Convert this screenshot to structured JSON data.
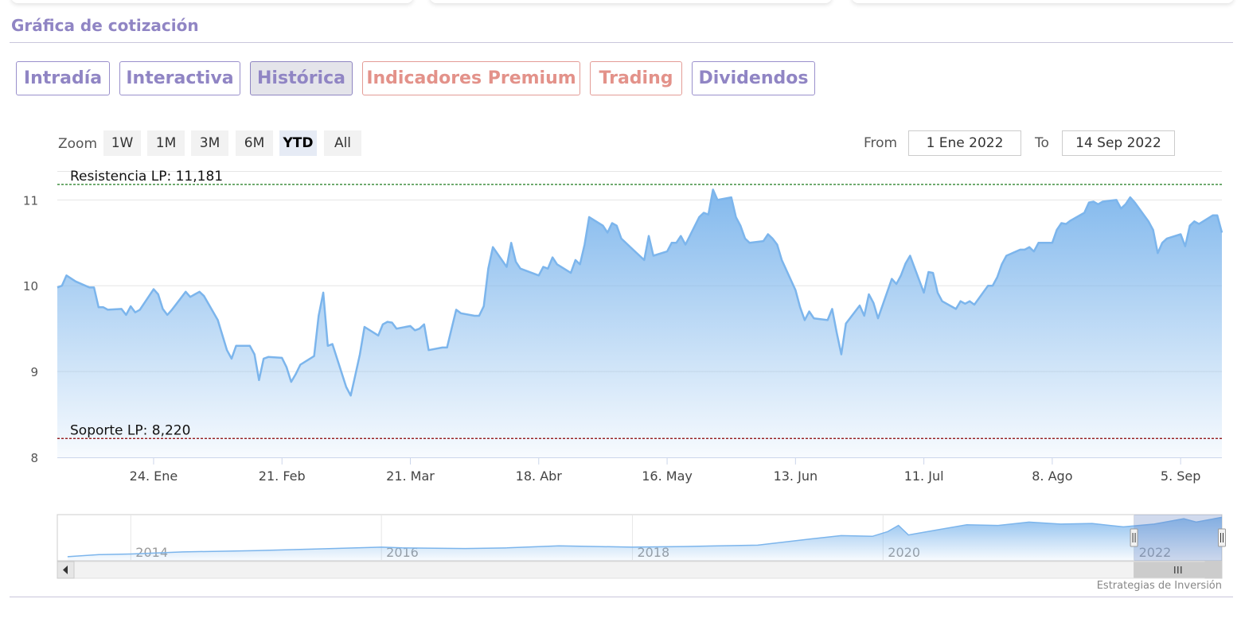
{
  "page": {
    "section_title": "Gráfica de cotización",
    "credit": "Estrategias de Inversión"
  },
  "tabs": [
    {
      "label": "Intradía",
      "state": "normal"
    },
    {
      "label": "Interactiva",
      "state": "normal"
    },
    {
      "label": "Histórica",
      "state": "active"
    },
    {
      "label": "Indicadores Premium",
      "state": "premium"
    },
    {
      "label": "Trading",
      "state": "premium"
    },
    {
      "label": "Dividendos",
      "state": "normal"
    }
  ],
  "range_selector": {
    "zoom_label": "Zoom",
    "buttons": [
      "1W",
      "1M",
      "3M",
      "6M",
      "YTD",
      "All"
    ],
    "selected": "YTD",
    "from_label": "From",
    "from_value": "1 Ene 2022",
    "to_label": "To",
    "to_value": "14 Sep 2022"
  },
  "colors": {
    "accent": "#9085c4",
    "premium": "#e3928a",
    "series_line": "#7cb5ec",
    "resistance": "#1a7a1a",
    "support": "#8b0000"
  },
  "chart_data": {
    "type": "area",
    "title": "",
    "xlabel": "",
    "ylabel": "",
    "ylim": [
      8,
      11.3
    ],
    "y_ticks": [
      8,
      9,
      10,
      11
    ],
    "x_range": [
      "2022-01-03",
      "2022-09-14"
    ],
    "x_ticks": [
      {
        "date": "2022-01-24",
        "label": "24. Ene"
      },
      {
        "date": "2022-02-21",
        "label": "21. Feb"
      },
      {
        "date": "2022-03-21",
        "label": "21. Mar"
      },
      {
        "date": "2022-04-18",
        "label": "18. Abr"
      },
      {
        "date": "2022-05-16",
        "label": "16. May"
      },
      {
        "date": "2022-06-13",
        "label": "13. Jun"
      },
      {
        "date": "2022-07-11",
        "label": "11. Jul"
      },
      {
        "date": "2022-08-08",
        "label": "8. Ago"
      },
      {
        "date": "2022-09-05",
        "label": "5. Sep"
      }
    ],
    "grid": true,
    "legend": "none",
    "plot_lines": [
      {
        "label": "Resistencia LP: 11,181",
        "value": 11.181,
        "style": "dashed",
        "color": "#1a7a1a"
      },
      {
        "label": "Soporte LP: 8,220",
        "value": 8.22,
        "style": "dashed",
        "color": "#8b0000"
      }
    ],
    "series": [
      {
        "points": [
          [
            "2022-01-03",
            9.98
          ],
          [
            "2022-01-04",
            10.0
          ],
          [
            "2022-01-05",
            10.12
          ],
          [
            "2022-01-07",
            10.05
          ],
          [
            "2022-01-10",
            9.98
          ],
          [
            "2022-01-11",
            9.98
          ],
          [
            "2022-01-12",
            9.75
          ],
          [
            "2022-01-13",
            9.75
          ],
          [
            "2022-01-14",
            9.72
          ],
          [
            "2022-01-17",
            9.73
          ],
          [
            "2022-01-18",
            9.66
          ],
          [
            "2022-01-19",
            9.76
          ],
          [
            "2022-01-20",
            9.69
          ],
          [
            "2022-01-21",
            9.72
          ],
          [
            "2022-01-24",
            9.96
          ],
          [
            "2022-01-25",
            9.9
          ],
          [
            "2022-01-26",
            9.73
          ],
          [
            "2022-01-27",
            9.66
          ],
          [
            "2022-01-28",
            9.72
          ],
          [
            "2022-01-31",
            9.93
          ],
          [
            "2022-02-01",
            9.87
          ],
          [
            "2022-02-02",
            9.9
          ],
          [
            "2022-02-03",
            9.93
          ],
          [
            "2022-02-04",
            9.88
          ],
          [
            "2022-02-07",
            9.6
          ],
          [
            "2022-02-09",
            9.25
          ],
          [
            "2022-02-10",
            9.15
          ],
          [
            "2022-02-11",
            9.3
          ],
          [
            "2022-02-14",
            9.3
          ],
          [
            "2022-02-15",
            9.2
          ],
          [
            "2022-02-16",
            8.9
          ],
          [
            "2022-02-17",
            9.15
          ],
          [
            "2022-02-18",
            9.17
          ],
          [
            "2022-02-21",
            9.16
          ],
          [
            "2022-02-22",
            9.05
          ],
          [
            "2022-02-23",
            8.88
          ],
          [
            "2022-02-24",
            8.97
          ],
          [
            "2022-02-25",
            9.08
          ],
          [
            "2022-02-28",
            9.18
          ],
          [
            "2022-03-01",
            9.65
          ],
          [
            "2022-03-02",
            9.92
          ],
          [
            "2022-03-03",
            9.3
          ],
          [
            "2022-03-04",
            9.32
          ],
          [
            "2022-03-07",
            8.82
          ],
          [
            "2022-03-08",
            8.72
          ],
          [
            "2022-03-09",
            8.96
          ],
          [
            "2022-03-10",
            9.2
          ],
          [
            "2022-03-11",
            9.52
          ],
          [
            "2022-03-14",
            9.42
          ],
          [
            "2022-03-15",
            9.55
          ],
          [
            "2022-03-16",
            9.58
          ],
          [
            "2022-03-17",
            9.57
          ],
          [
            "2022-03-18",
            9.5
          ],
          [
            "2022-03-21",
            9.53
          ],
          [
            "2022-03-22",
            9.48
          ],
          [
            "2022-03-23",
            9.5
          ],
          [
            "2022-03-24",
            9.55
          ],
          [
            "2022-03-25",
            9.25
          ],
          [
            "2022-03-28",
            9.28
          ],
          [
            "2022-03-29",
            9.28
          ],
          [
            "2022-03-30",
            9.5
          ],
          [
            "2022-03-31",
            9.72
          ],
          [
            "2022-04-01",
            9.68
          ],
          [
            "2022-04-04",
            9.65
          ],
          [
            "2022-04-05",
            9.65
          ],
          [
            "2022-04-06",
            9.76
          ],
          [
            "2022-04-07",
            10.2
          ],
          [
            "2022-04-08",
            10.45
          ],
          [
            "2022-04-11",
            10.22
          ],
          [
            "2022-04-12",
            10.5
          ],
          [
            "2022-04-13",
            10.28
          ],
          [
            "2022-04-14",
            10.2
          ],
          [
            "2022-04-18",
            10.12
          ],
          [
            "2022-04-19",
            10.22
          ],
          [
            "2022-04-20",
            10.2
          ],
          [
            "2022-04-21",
            10.33
          ],
          [
            "2022-04-22",
            10.25
          ],
          [
            "2022-04-25",
            10.15
          ],
          [
            "2022-04-26",
            10.3
          ],
          [
            "2022-04-27",
            10.25
          ],
          [
            "2022-04-28",
            10.48
          ],
          [
            "2022-04-29",
            10.8
          ],
          [
            "2022-05-02",
            10.7
          ],
          [
            "2022-05-03",
            10.62
          ],
          [
            "2022-05-04",
            10.73
          ],
          [
            "2022-05-05",
            10.7
          ],
          [
            "2022-05-06",
            10.55
          ],
          [
            "2022-05-09",
            10.4
          ],
          [
            "2022-05-10",
            10.35
          ],
          [
            "2022-05-11",
            10.3
          ],
          [
            "2022-05-12",
            10.58
          ],
          [
            "2022-05-13",
            10.35
          ],
          [
            "2022-05-16",
            10.4
          ],
          [
            "2022-05-17",
            10.5
          ],
          [
            "2022-05-18",
            10.5
          ],
          [
            "2022-05-19",
            10.58
          ],
          [
            "2022-05-20",
            10.48
          ],
          [
            "2022-05-23",
            10.8
          ],
          [
            "2022-05-24",
            10.85
          ],
          [
            "2022-05-25",
            10.83
          ],
          [
            "2022-05-26",
            11.12
          ],
          [
            "2022-05-27",
            11.0
          ],
          [
            "2022-05-30",
            11.03
          ],
          [
            "2022-05-31",
            10.8
          ],
          [
            "2022-06-01",
            10.7
          ],
          [
            "2022-06-02",
            10.55
          ],
          [
            "2022-06-03",
            10.5
          ],
          [
            "2022-06-06",
            10.52
          ],
          [
            "2022-06-07",
            10.6
          ],
          [
            "2022-06-08",
            10.55
          ],
          [
            "2022-06-09",
            10.48
          ],
          [
            "2022-06-10",
            10.3
          ],
          [
            "2022-06-13",
            9.95
          ],
          [
            "2022-06-14",
            9.75
          ],
          [
            "2022-06-15",
            9.6
          ],
          [
            "2022-06-16",
            9.7
          ],
          [
            "2022-06-17",
            9.62
          ],
          [
            "2022-06-20",
            9.6
          ],
          [
            "2022-06-21",
            9.73
          ],
          [
            "2022-06-22",
            9.45
          ],
          [
            "2022-06-23",
            9.2
          ],
          [
            "2022-06-24",
            9.56
          ],
          [
            "2022-06-27",
            9.77
          ],
          [
            "2022-06-28",
            9.65
          ],
          [
            "2022-06-29",
            9.9
          ],
          [
            "2022-06-30",
            9.8
          ],
          [
            "2022-07-01",
            9.62
          ],
          [
            "2022-07-04",
            10.08
          ],
          [
            "2022-07-05",
            10.02
          ],
          [
            "2022-07-06",
            10.12
          ],
          [
            "2022-07-07",
            10.26
          ],
          [
            "2022-07-08",
            10.35
          ],
          [
            "2022-07-11",
            9.92
          ],
          [
            "2022-07-12",
            10.16
          ],
          [
            "2022-07-13",
            10.15
          ],
          [
            "2022-07-14",
            9.92
          ],
          [
            "2022-07-15",
            9.82
          ],
          [
            "2022-07-18",
            9.73
          ],
          [
            "2022-07-19",
            9.82
          ],
          [
            "2022-07-20",
            9.79
          ],
          [
            "2022-07-21",
            9.82
          ],
          [
            "2022-07-22",
            9.78
          ],
          [
            "2022-07-25",
            10.0
          ],
          [
            "2022-07-26",
            10.0
          ],
          [
            "2022-07-27",
            10.1
          ],
          [
            "2022-07-28",
            10.25
          ],
          [
            "2022-07-29",
            10.35
          ],
          [
            "2022-08-01",
            10.42
          ],
          [
            "2022-08-02",
            10.42
          ],
          [
            "2022-08-03",
            10.45
          ],
          [
            "2022-08-04",
            10.4
          ],
          [
            "2022-08-05",
            10.5
          ],
          [
            "2022-08-08",
            10.5
          ],
          [
            "2022-08-09",
            10.65
          ],
          [
            "2022-08-10",
            10.73
          ],
          [
            "2022-08-11",
            10.72
          ],
          [
            "2022-08-12",
            10.76
          ],
          [
            "2022-08-15",
            10.85
          ],
          [
            "2022-08-16",
            10.97
          ],
          [
            "2022-08-17",
            10.98
          ],
          [
            "2022-08-18",
            10.95
          ],
          [
            "2022-08-19",
            10.98
          ],
          [
            "2022-08-22",
            11.0
          ],
          [
            "2022-08-23",
            10.9
          ],
          [
            "2022-08-24",
            10.95
          ],
          [
            "2022-08-25",
            11.03
          ],
          [
            "2022-08-26",
            10.97
          ],
          [
            "2022-08-29",
            10.75
          ],
          [
            "2022-08-30",
            10.65
          ],
          [
            "2022-08-31",
            10.38
          ],
          [
            "2022-09-01",
            10.5
          ],
          [
            "2022-09-02",
            10.55
          ],
          [
            "2022-09-05",
            10.6
          ],
          [
            "2022-09-06",
            10.46
          ],
          [
            "2022-09-07",
            10.7
          ],
          [
            "2022-09-08",
            10.75
          ],
          [
            "2022-09-09",
            10.72
          ],
          [
            "2022-09-12",
            10.82
          ],
          [
            "2022-09-13",
            10.82
          ],
          [
            "2022-09-14",
            10.62
          ]
        ]
      }
    ],
    "navigator": {
      "x_range": [
        "2013-06-01",
        "2022-09-14"
      ],
      "x_ticks": [
        {
          "date": "2014-01-01",
          "label": "2014"
        },
        {
          "date": "2016-01-01",
          "label": "2016"
        },
        {
          "date": "2018-01-01",
          "label": "2018"
        },
        {
          "date": "2020-01-01",
          "label": "2020"
        },
        {
          "date": "2022-01-01",
          "label": "2022"
        }
      ],
      "selection": [
        "2022-01-01",
        "2022-09-14"
      ],
      "points": [
        [
          "2013-07-01",
          4.6
        ],
        [
          "2013-10-01",
          4.9
        ],
        [
          "2014-01-01",
          5.0
        ],
        [
          "2014-06-01",
          5.3
        ],
        [
          "2015-01-01",
          5.5
        ],
        [
          "2015-06-01",
          5.7
        ],
        [
          "2016-01-01",
          6.0
        ],
        [
          "2016-03-01",
          5.9
        ],
        [
          "2016-09-01",
          5.8
        ],
        [
          "2017-01-01",
          5.9
        ],
        [
          "2017-06-01",
          6.2
        ],
        [
          "2018-01-01",
          6.0
        ],
        [
          "2018-06-01",
          6.1
        ],
        [
          "2019-01-01",
          6.3
        ],
        [
          "2019-06-01",
          7.2
        ],
        [
          "2019-09-01",
          7.7
        ],
        [
          "2019-12-01",
          7.6
        ],
        [
          "2020-01-15",
          8.3
        ],
        [
          "2020-02-15",
          9.2
        ],
        [
          "2020-03-15",
          7.8
        ],
        [
          "2020-06-01",
          8.5
        ],
        [
          "2020-09-01",
          9.3
        ],
        [
          "2020-12-01",
          9.2
        ],
        [
          "2021-03-01",
          9.7
        ],
        [
          "2021-06-01",
          9.4
        ],
        [
          "2021-09-01",
          9.5
        ],
        [
          "2021-12-01",
          9.0
        ],
        [
          "2022-03-01",
          9.4
        ],
        [
          "2022-05-26",
          10.2
        ],
        [
          "2022-07-01",
          9.7
        ],
        [
          "2022-09-14",
          10.4
        ]
      ]
    }
  }
}
